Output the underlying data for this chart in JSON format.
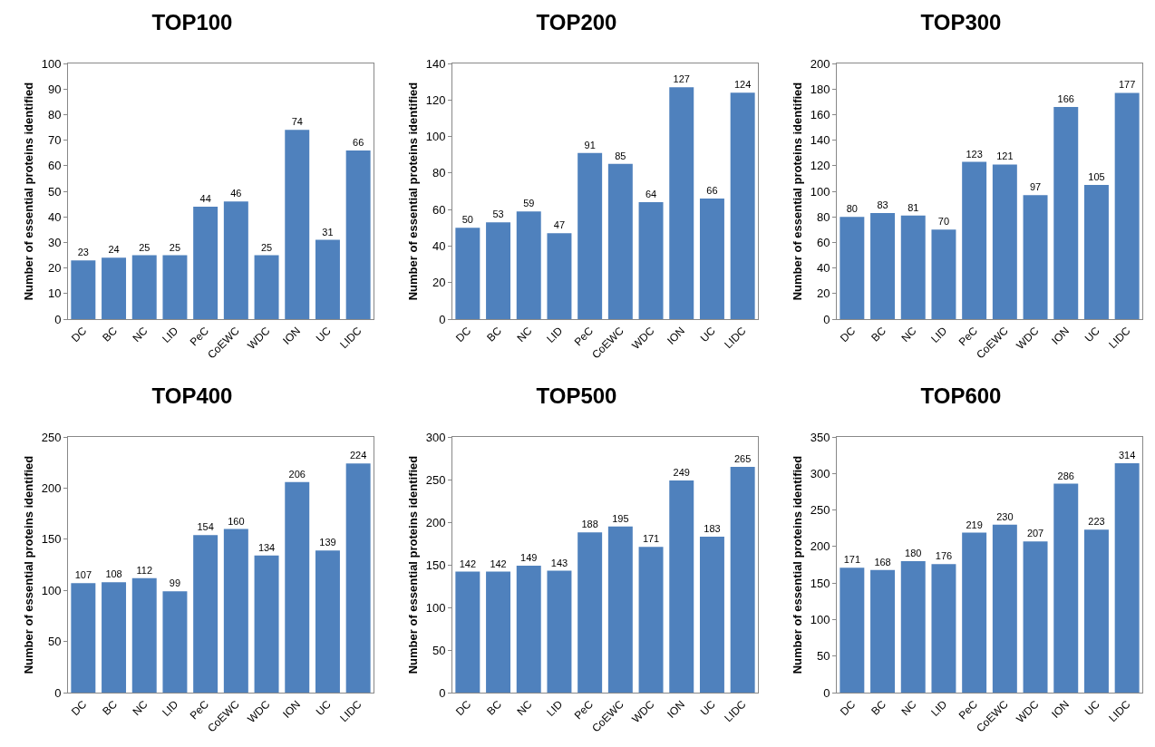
{
  "chart_data": [
    {
      "type": "bar",
      "title": "TOP100",
      "ylabel": "Number of essential proteins identified",
      "categories": [
        "DC",
        "BC",
        "NC",
        "LID",
        "PeC",
        "CoEWC",
        "WDC",
        "ION",
        "UC",
        "LIDC"
      ],
      "values": [
        23,
        24,
        25,
        25,
        44,
        46,
        25,
        74,
        31,
        66
      ],
      "color": "#4f81bd",
      "ylim": [
        0,
        100
      ],
      "yticks": [
        0,
        10,
        20,
        30,
        40,
        50,
        60,
        70,
        80,
        90,
        100
      ],
      "data_labels": true
    },
    {
      "type": "bar",
      "title": "TOP200",
      "ylabel": "Number of essential proteins identified",
      "categories": [
        "DC",
        "BC",
        "NC",
        "LID",
        "PeC",
        "CoEWC",
        "WDC",
        "ION",
        "UC",
        "LIDC"
      ],
      "values": [
        50,
        53,
        59,
        47,
        91,
        85,
        64,
        127,
        66,
        124
      ],
      "color": "#4f81bd",
      "ylim": [
        0,
        140
      ],
      "yticks": [
        0,
        20,
        40,
        60,
        80,
        100,
        120,
        140
      ],
      "data_labels": true
    },
    {
      "type": "bar",
      "title": "TOP300",
      "ylabel": "Number of essential proteins identified",
      "categories": [
        "DC",
        "BC",
        "NC",
        "LID",
        "PeC",
        "CoEWC",
        "WDC",
        "ION",
        "UC",
        "LIDC"
      ],
      "values": [
        80,
        83,
        81,
        70,
        123,
        121,
        97,
        166,
        105,
        177
      ],
      "color": "#4f81bd",
      "ylim": [
        0,
        200
      ],
      "yticks": [
        0,
        20,
        40,
        60,
        80,
        100,
        120,
        140,
        160,
        180,
        200
      ],
      "data_labels": true
    },
    {
      "type": "bar",
      "title": "TOP400",
      "ylabel": "Number of essential proteins identified",
      "categories": [
        "DC",
        "BC",
        "NC",
        "LID",
        "PeC",
        "CoEWC",
        "WDC",
        "ION",
        "UC",
        "LIDC"
      ],
      "values": [
        107,
        108,
        112,
        99,
        154,
        160,
        134,
        206,
        139,
        224
      ],
      "color": "#4f81bd",
      "ylim": [
        0,
        250
      ],
      "yticks": [
        0,
        50,
        100,
        150,
        200,
        250
      ],
      "data_labels": true
    },
    {
      "type": "bar",
      "title": "TOP500",
      "ylabel": "Number of essential proteins identified",
      "categories": [
        "DC",
        "BC",
        "NC",
        "LID",
        "PeC",
        "CoEWC",
        "WDC",
        "ION",
        "UC",
        "LIDC"
      ],
      "values": [
        142,
        142,
        149,
        143,
        188,
        195,
        171,
        249,
        183,
        265
      ],
      "color": "#4f81bd",
      "ylim": [
        0,
        300
      ],
      "yticks": [
        0,
        50,
        100,
        150,
        200,
        250,
        300
      ],
      "data_labels": true
    },
    {
      "type": "bar",
      "title": "TOP600",
      "ylabel": "Number of essential proteins identified",
      "categories": [
        "DC",
        "BC",
        "NC",
        "LID",
        "PeC",
        "CoEWC",
        "WDC",
        "ION",
        "UC",
        "LIDC"
      ],
      "values": [
        171,
        168,
        180,
        176,
        219,
        230,
        207,
        286,
        223,
        314
      ],
      "color": "#4f81bd",
      "ylim": [
        0,
        350
      ],
      "yticks": [
        0,
        50,
        100,
        150,
        200,
        250,
        300,
        350
      ],
      "data_labels": true
    }
  ]
}
